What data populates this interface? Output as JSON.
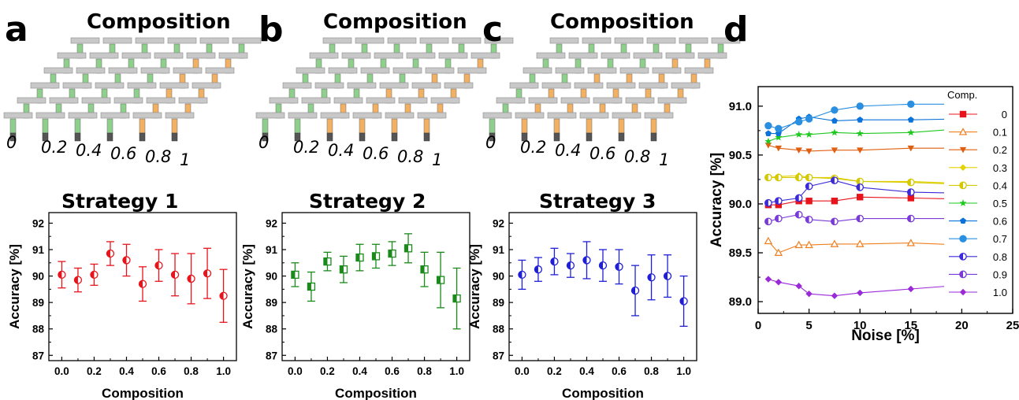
{
  "panels": [
    {
      "letter": "a",
      "composition_title": "Composition",
      "strategy_title": "Strategy 1",
      "color": "#e8141b",
      "array_compositions": [
        "0",
        "0.2",
        "0.4",
        "0.6",
        "0.8",
        "1"
      ],
      "orange_counts": [
        0,
        0,
        0,
        0,
        5,
        5
      ]
    },
    {
      "letter": "b",
      "composition_title": "Composition",
      "strategy_title": "Strategy 2",
      "color": "#1a8a1a",
      "array_compositions": [
        "0",
        "0.2",
        "0.4",
        "0.6",
        "0.8",
        "1"
      ],
      "orange_counts": [
        0,
        0,
        1,
        2,
        3,
        5
      ]
    },
    {
      "letter": "c",
      "composition_title": "Composition",
      "strategy_title": "Strategy 3",
      "color": "#1f1fd6",
      "array_compositions": [
        "0",
        "0.2",
        "0.4",
        "0.6",
        "0.8",
        "1"
      ],
      "orange_counts": [
        0,
        2,
        3,
        3,
        4,
        5
      ]
    },
    {
      "letter": "d"
    }
  ],
  "colors": {
    "conductance_green": "#8fcf8c",
    "conductance_orange": "#f2b062",
    "bar_gray": "#c8c8c8"
  },
  "chart_data": [
    {
      "type": "scatter",
      "title": "Strategy 1",
      "xlabel": "Composition",
      "ylabel": "Accuracy [%]",
      "xlim": [
        -0.08,
        1.08
      ],
      "ylim": [
        86.8,
        92.4
      ],
      "xticks": [
        0.0,
        0.2,
        0.4,
        0.6,
        0.8,
        1.0
      ],
      "xtick_labels": [
        "0.0",
        "0.2",
        "0.4",
        "0.6",
        "0.8",
        "1.0"
      ],
      "yticks": [
        87,
        88,
        89,
        90,
        91,
        92
      ],
      "ytick_labels": [
        "87",
        "88",
        "89",
        "90",
        "91",
        "92"
      ],
      "marker": "circle-half",
      "color": "#e8141b",
      "x": [
        0.0,
        0.1,
        0.2,
        0.3,
        0.4,
        0.5,
        0.6,
        0.7,
        0.8,
        0.9,
        1.0
      ],
      "y": [
        90.05,
        89.85,
        90.05,
        90.85,
        90.6,
        89.7,
        90.4,
        90.05,
        89.9,
        90.1,
        89.25
      ],
      "error": [
        0.5,
        0.45,
        0.4,
        0.45,
        0.6,
        0.65,
        0.6,
        0.8,
        0.95,
        0.95,
        1.0
      ]
    },
    {
      "type": "scatter",
      "title": "Strategy 2",
      "xlabel": "Composition",
      "ylabel": "Accuracy [%]",
      "xlim": [
        -0.08,
        1.08
      ],
      "ylim": [
        86.8,
        92.4
      ],
      "xticks": [
        0.0,
        0.2,
        0.4,
        0.6,
        0.8,
        1.0
      ],
      "xtick_labels": [
        "0.0",
        "0.2",
        "0.4",
        "0.6",
        "0.8",
        "1.0"
      ],
      "yticks": [
        87,
        88,
        89,
        90,
        91,
        92
      ],
      "ytick_labels": [
        "87",
        "88",
        "89",
        "90",
        "91",
        "92"
      ],
      "marker": "square-half",
      "color": "#1a8a1a",
      "x": [
        0.0,
        0.1,
        0.2,
        0.3,
        0.4,
        0.5,
        0.6,
        0.7,
        0.8,
        0.9,
        1.0
      ],
      "y": [
        90.05,
        89.6,
        90.55,
        90.25,
        90.7,
        90.75,
        90.85,
        91.05,
        90.25,
        89.85,
        89.15
      ],
      "error": [
        0.45,
        0.55,
        0.35,
        0.5,
        0.5,
        0.45,
        0.45,
        0.55,
        0.65,
        1.05,
        1.15
      ]
    },
    {
      "type": "scatter",
      "title": "Strategy 3",
      "xlabel": "Composition",
      "ylabel": "Accuracy [%]",
      "xlim": [
        -0.08,
        1.08
      ],
      "ylim": [
        86.8,
        92.4
      ],
      "xticks": [
        0.0,
        0.2,
        0.4,
        0.6,
        0.8,
        1.0
      ],
      "xtick_labels": [
        "0.0",
        "0.2",
        "0.4",
        "0.6",
        "0.8",
        "1.0"
      ],
      "yticks": [
        87,
        88,
        89,
        90,
        91,
        92
      ],
      "ytick_labels": [
        "87",
        "88",
        "89",
        "90",
        "91",
        "92"
      ],
      "marker": "circle-half",
      "color": "#1f1fd6",
      "x": [
        0.0,
        0.1,
        0.2,
        0.3,
        0.4,
        0.5,
        0.6,
        0.7,
        0.8,
        0.9,
        1.0
      ],
      "y": [
        90.05,
        90.25,
        90.55,
        90.4,
        90.6,
        90.4,
        90.35,
        89.45,
        89.95,
        90.0,
        89.05
      ],
      "error": [
        0.55,
        0.45,
        0.5,
        0.45,
        0.7,
        0.6,
        0.65,
        0.95,
        0.85,
        0.8,
        0.95
      ]
    },
    {
      "type": "line",
      "xlabel": "Noise [%]",
      "ylabel": "Accuracy  [%]",
      "xlim": [
        0,
        25
      ],
      "ylim": [
        88.88,
        91.2
      ],
      "xticks": [
        0,
        5,
        10,
        15,
        20,
        25
      ],
      "xtick_labels": [
        "0",
        "5",
        "10",
        "15",
        "20",
        "25"
      ],
      "yticks": [
        89.0,
        89.5,
        90.0,
        90.5,
        91.0
      ],
      "ytick_labels": [
        "89.0",
        "89.5",
        "90.0",
        "90.5",
        "91.0"
      ],
      "legend_title": "Comp.",
      "legend_position": "right",
      "x": [
        1,
        2,
        4,
        5,
        7.5,
        10,
        15,
        20
      ],
      "series": [
        {
          "name": "0",
          "color": "#e8141b",
          "marker": "square",
          "values": [
            89.99,
            89.99,
            90.03,
            90.03,
            90.03,
            90.07,
            90.06,
            90.05
          ]
        },
        {
          "name": "0.1",
          "color": "#f07f1e",
          "marker": "triangle-up-open",
          "values": [
            89.62,
            89.5,
            89.58,
            89.58,
            89.59,
            89.59,
            89.6,
            89.58
          ]
        },
        {
          "name": "0.2",
          "color": "#e05e10",
          "marker": "triangle-down",
          "values": [
            90.6,
            90.57,
            90.55,
            90.54,
            90.55,
            90.55,
            90.57,
            90.57
          ]
        },
        {
          "name": "0.3",
          "color": "#e6d200",
          "marker": "diamond",
          "values": [
            90.27,
            90.28,
            90.29,
            90.27,
            90.27,
            90.23,
            90.23,
            90.21
          ]
        },
        {
          "name": "0.4",
          "color": "#d4c800",
          "marker": "circle-half",
          "values": [
            90.27,
            90.27,
            90.27,
            90.27,
            90.26,
            90.23,
            90.22,
            90.2
          ]
        },
        {
          "name": "0.5",
          "color": "#1ec81e",
          "marker": "star",
          "values": [
            90.64,
            90.68,
            90.71,
            90.71,
            90.73,
            90.72,
            90.73,
            90.77
          ]
        },
        {
          "name": "0.6",
          "color": "#0a72d8",
          "marker": "pentagon",
          "values": [
            90.72,
            90.72,
            90.87,
            90.89,
            90.85,
            90.86,
            90.86,
            90.87
          ]
        },
        {
          "name": "0.7",
          "color": "#2a8fe0",
          "marker": "circle",
          "values": [
            90.8,
            90.77,
            90.84,
            90.87,
            90.96,
            91.0,
            91.02,
            91.02
          ]
        },
        {
          "name": "0.8",
          "color": "#3a2ad8",
          "marker": "circle-half",
          "values": [
            90.01,
            90.03,
            90.06,
            90.18,
            90.24,
            90.17,
            90.12,
            90.11
          ]
        },
        {
          "name": "0.9",
          "color": "#7a3ad8",
          "marker": "circle-half",
          "values": [
            89.82,
            89.85,
            89.89,
            89.84,
            89.82,
            89.85,
            89.85,
            89.85
          ]
        },
        {
          "name": "1.0",
          "color": "#9a2ad8",
          "marker": "diamond",
          "values": [
            89.23,
            89.2,
            89.16,
            89.08,
            89.06,
            89.09,
            89.13,
            89.17
          ]
        }
      ]
    }
  ]
}
